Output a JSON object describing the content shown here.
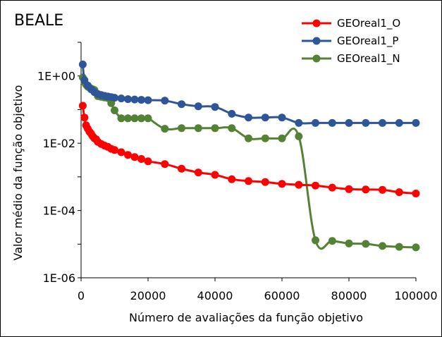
{
  "chart_data": {
    "type": "line",
    "title": "BEALE",
    "xlabel": "Número de avaliações da função objetivo",
    "ylabel": "Valor médio da função objetivo",
    "xlim": [
      0,
      100000
    ],
    "ylim": [
      1e-06,
      10
    ],
    "yscale": "log",
    "grid": false,
    "legend_position": "top-right",
    "x_ticks": [
      0,
      20000,
      40000,
      60000,
      80000,
      100000
    ],
    "x_tick_labels": [
      "0",
      "20000",
      "40000",
      "60000",
      "80000",
      "100000"
    ],
    "y_ticks": [
      1e-06,
      0.0001,
      0.01,
      1
    ],
    "y_tick_labels": [
      "1E-06",
      "1E-04",
      "1E-02",
      "1E+00"
    ],
    "series": [
      {
        "name": "GEOreal1_O",
        "color": "#ff0000",
        "x": [
          500,
          1000,
          1500,
          2000,
          2500,
          3000,
          3500,
          4000,
          4500,
          5000,
          6000,
          7000,
          8000,
          9000,
          10000,
          12000,
          14000,
          16000,
          18000,
          20000,
          25000,
          30000,
          35000,
          40000,
          45000,
          50000,
          55000,
          60000,
          65000,
          70000,
          75000,
          80000,
          85000,
          90000,
          95000,
          100000
        ],
        "y": [
          0.13,
          0.058,
          0.034,
          0.027,
          0.022,
          0.019,
          0.016,
          0.014,
          0.013,
          0.011,
          0.0095,
          0.0085,
          0.0078,
          0.0068,
          0.0063,
          0.0054,
          0.0045,
          0.0039,
          0.0034,
          0.0029,
          0.0024,
          0.00175,
          0.00135,
          0.00115,
          0.00085,
          0.00075,
          0.0007,
          0.00062,
          0.00058,
          0.00055,
          0.00048,
          0.00043,
          0.00042,
          0.00041,
          0.00035,
          0.00032
        ]
      },
      {
        "name": "GEOreal1_P",
        "color": "#2e5597",
        "x": [
          500,
          1000,
          2000,
          3000,
          4000,
          5000,
          6000,
          7000,
          8000,
          9000,
          10000,
          12000,
          14000,
          16000,
          18000,
          20000,
          25000,
          30000,
          35000,
          40000,
          45000,
          50000,
          55000,
          60000,
          65000,
          70000,
          75000,
          80000,
          85000,
          90000,
          95000,
          100000
        ],
        "y": [
          2.2,
          0.75,
          0.52,
          0.4,
          0.33,
          0.29,
          0.27,
          0.255,
          0.245,
          0.235,
          0.225,
          0.215,
          0.205,
          0.2,
          0.195,
          0.19,
          0.185,
          0.145,
          0.125,
          0.12,
          0.075,
          0.058,
          0.058,
          0.058,
          0.04,
          0.04,
          0.04,
          0.04,
          0.04,
          0.04,
          0.04,
          0.04
        ]
      },
      {
        "name": "GEOreal1_N",
        "color": "#548235",
        "x": [
          500,
          1000,
          1500,
          2000,
          2500,
          3000,
          3500,
          4000,
          5000,
          6000,
          7000,
          8000,
          9000,
          10000,
          12000,
          14000,
          16000,
          18000,
          20000,
          25000,
          30000,
          35000,
          40000,
          45000,
          50000,
          55000,
          60000,
          65000,
          70000,
          75000,
          80000,
          85000,
          90000,
          95000,
          100000
        ],
        "y": [
          0.9,
          0.65,
          0.55,
          0.48,
          0.45,
          0.42,
          0.4,
          0.38,
          0.25,
          0.24,
          0.23,
          0.22,
          0.155,
          0.095,
          0.055,
          0.055,
          0.055,
          0.055,
          0.055,
          0.027,
          0.028,
          0.028,
          0.028,
          0.028,
          0.014,
          0.014,
          0.014,
          0.016,
          1.3e-05,
          1.25e-05,
          1.05e-05,
          1.02e-05,
          8.8e-06,
          8.3e-06,
          8e-06
        ]
      }
    ]
  }
}
